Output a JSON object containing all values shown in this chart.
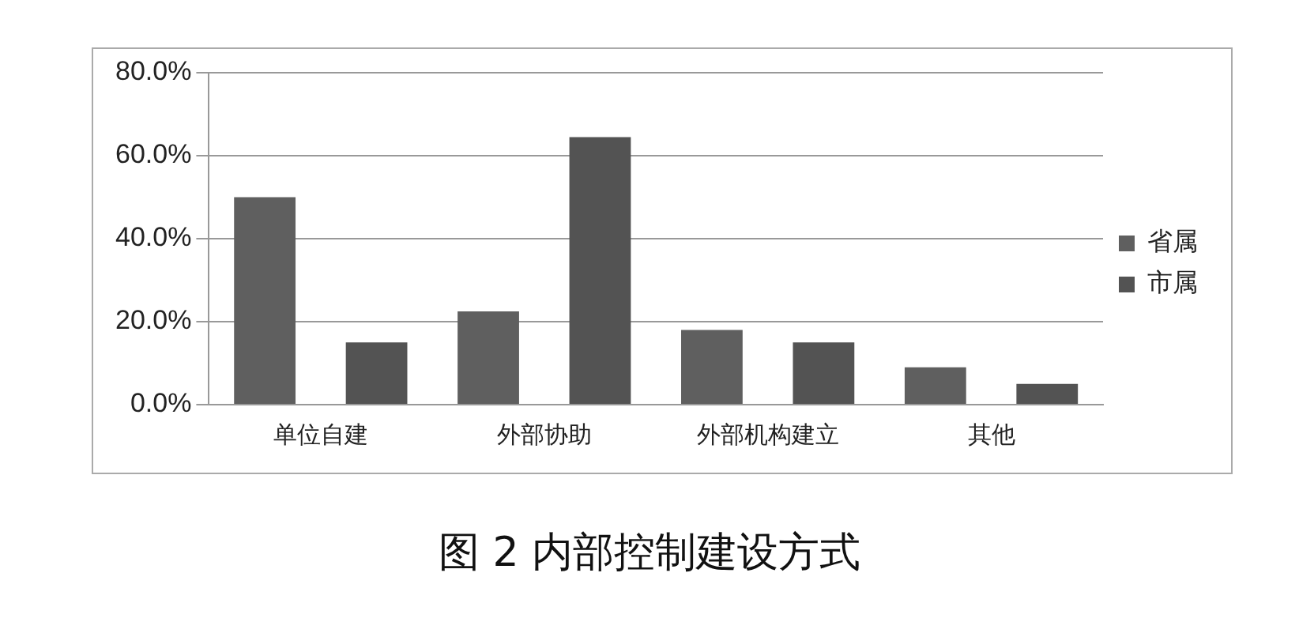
{
  "chart_data": {
    "type": "bar",
    "title": "图 2  内部控制建设方式",
    "categories": [
      "单位自建",
      "外部协助",
      "外部机构建立",
      "其他"
    ],
    "series": [
      {
        "name": "省属",
        "color": "#5f5f5f",
        "values": [
          50,
          22.5,
          18,
          9
        ]
      },
      {
        "name": "市属",
        "color": "#535353",
        "values": [
          15,
          64.5,
          15,
          5
        ]
      }
    ],
    "ylim": [
      0,
      80
    ],
    "yticks": [
      {
        "value": 0,
        "label": "0.0%"
      },
      {
        "value": 20,
        "label": "20.0%"
      },
      {
        "value": 40,
        "label": "40.0%"
      },
      {
        "value": 60,
        "label": "60.0%"
      },
      {
        "value": 80,
        "label": "80.0%"
      }
    ],
    "grid": "y",
    "legend": "right"
  }
}
